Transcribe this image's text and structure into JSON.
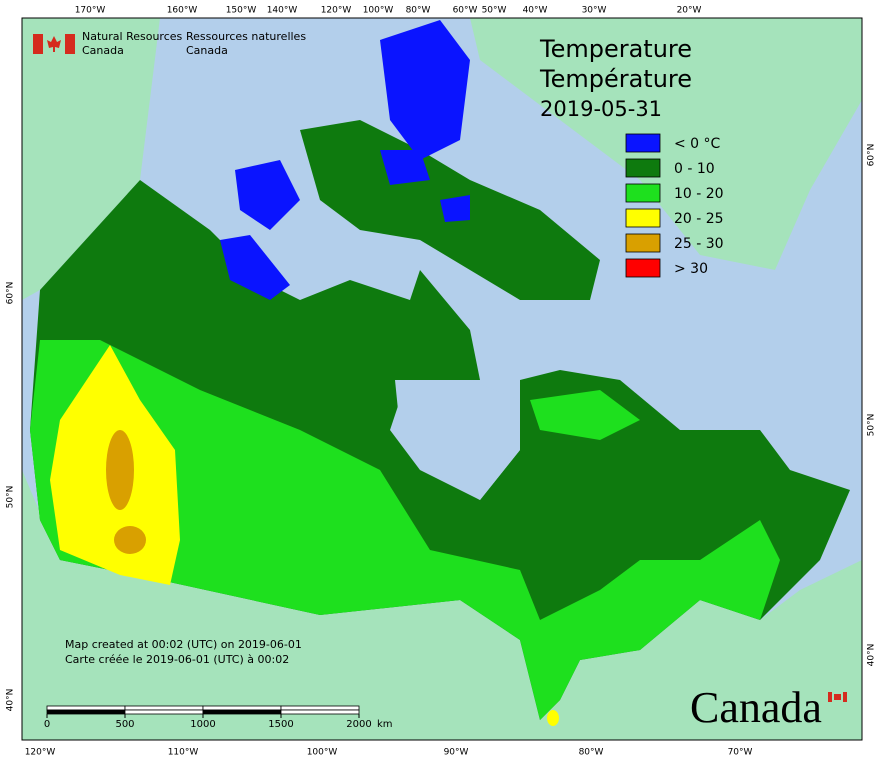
{
  "header": {
    "english": [
      "Natural Resources",
      "Canada"
    ],
    "french": [
      "Ressources naturelles",
      "Canada"
    ]
  },
  "title": {
    "english": "Temperature",
    "french": "Température",
    "date": "2019-05-31"
  },
  "legend": [
    {
      "label": "< 0 °C",
      "color": "#0a14ff"
    },
    {
      "label": "0 - 10",
      "color": "#0e7a0e"
    },
    {
      "label": "10 - 20",
      "color": "#1ee01e"
    },
    {
      "label": "20 - 25",
      "color": "#ffff00"
    },
    {
      "label": "25 - 30",
      "color": "#d9a000"
    },
    {
      "label": "> 30",
      "color": "#ff0000"
    }
  ],
  "graticule": {
    "top": [
      "170°W",
      "160°W",
      "150°W",
      "140°W",
      "120°W",
      "100°W",
      "80°W",
      "60°W",
      "50°W",
      "40°W",
      "30°W",
      "20°W"
    ],
    "bottom": [
      "120°W",
      "110°W",
      "100°W",
      "90°W",
      "80°W",
      "70°W"
    ],
    "left": [
      "60°N",
      "50°N",
      "40°N"
    ],
    "right": [
      "60°N",
      "50°N",
      "40°N"
    ]
  },
  "notes": [
    "Map created at 00:02 (UTC) on 2019-06-01",
    "Carte créée le 2019-06-01 (UTC) à 00:02"
  ],
  "scale_bar": {
    "ticks": [
      0,
      500,
      1000,
      1500,
      2000
    ],
    "unit": "km"
  },
  "wordmark": "Canada"
}
